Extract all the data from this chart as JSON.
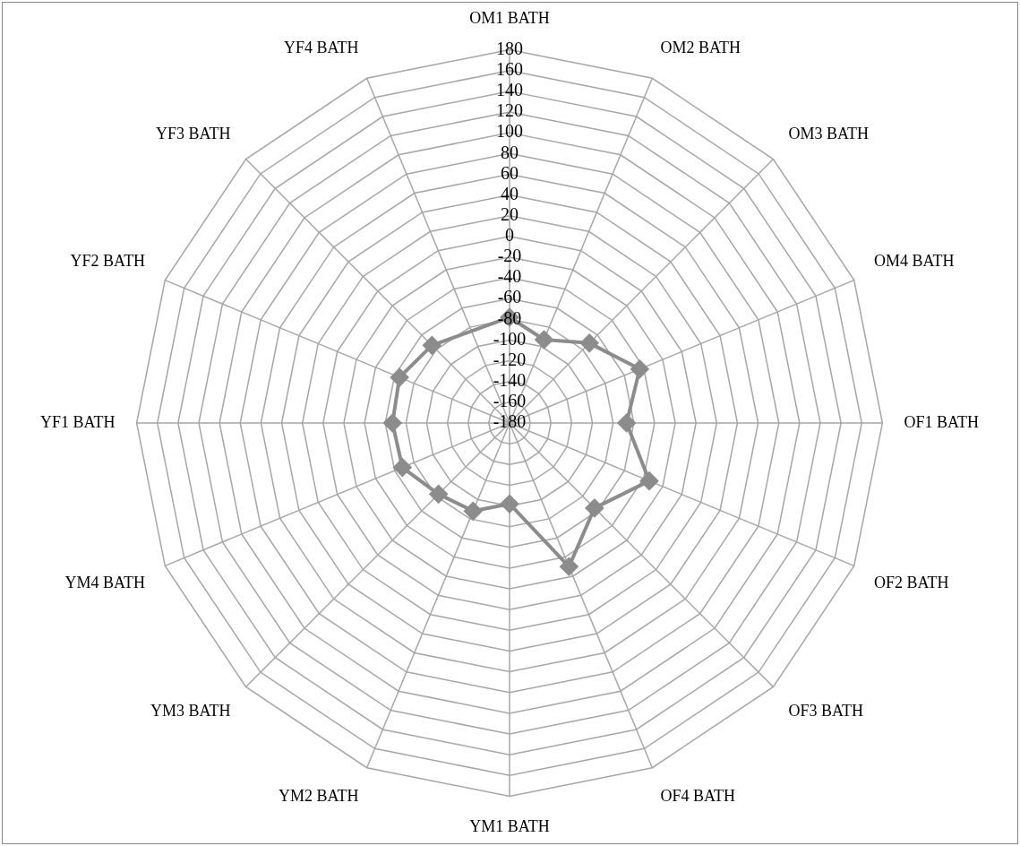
{
  "chart_data": {
    "type": "radar",
    "categories": [
      "OM1 BATH",
      "OM2 BATH",
      "OM3 BATH",
      "OM4 BATH",
      "OF1 BATH",
      "OF2 BATH",
      "OF3 BATH",
      "OF4 BATH",
      "YM1 BATH",
      "YM2 BATH",
      "YM3 BATH",
      "YM4 BATH",
      "YF1 BATH",
      "YF2 BATH",
      "YF3 BATH",
      "YF4 BATH"
    ],
    "series": [
      {
        "color": "#8c8c8c",
        "values": [
          -78,
          -93,
          -71,
          -44,
          -67,
          -34,
          -64,
          -30,
          -102,
          -88,
          -83,
          -68,
          -67,
          -65,
          -74,
          null
        ]
      }
    ],
    "ylim": [
      -180,
      180
    ],
    "yticks": [
      -180,
      -160,
      -140,
      -120,
      -100,
      -80,
      -60,
      -40,
      -20,
      0,
      20,
      40,
      60,
      80,
      100,
      120,
      140,
      160,
      180
    ],
    "grid": true,
    "marker": "diamond",
    "line_style": "solid"
  }
}
